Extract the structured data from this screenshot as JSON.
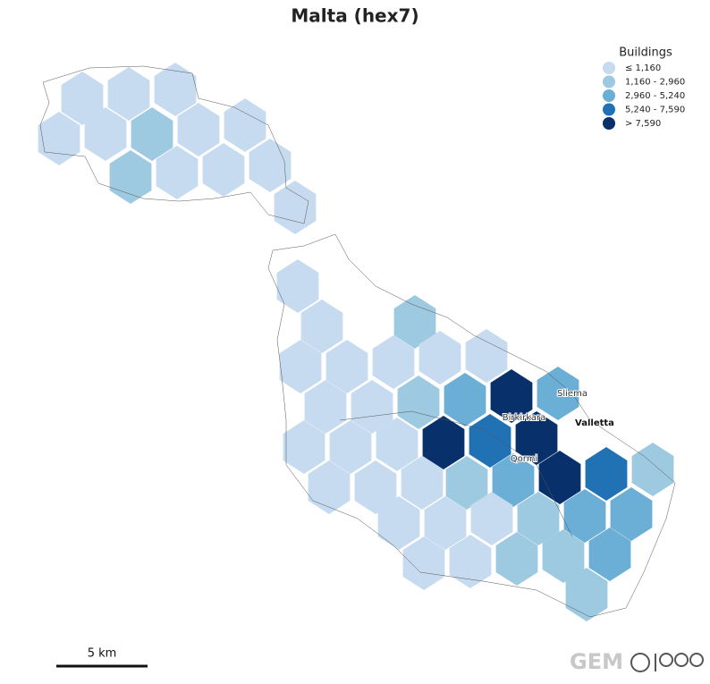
{
  "title": "Malta (hex7)",
  "legend": {
    "title": "Buildings",
    "items": [
      {
        "label": "≤ 1,160",
        "color": "#c6dbef"
      },
      {
        "label": "1,160 - 2,960",
        "color": "#9ecae1"
      },
      {
        "label": "2,960 - 5,240",
        "color": "#6baed6"
      },
      {
        "label": "5,240 - 7,590",
        "color": "#2171b5"
      },
      {
        "label": "> 7,590",
        "color": "#08306b"
      }
    ]
  },
  "places": [
    {
      "name": "Sliema"
    },
    {
      "name": "Birkirkara"
    },
    {
      "name": "Valletta"
    },
    {
      "name": "Qormi"
    }
  ],
  "scale_bar": "5 km",
  "logo": "GEM"
}
